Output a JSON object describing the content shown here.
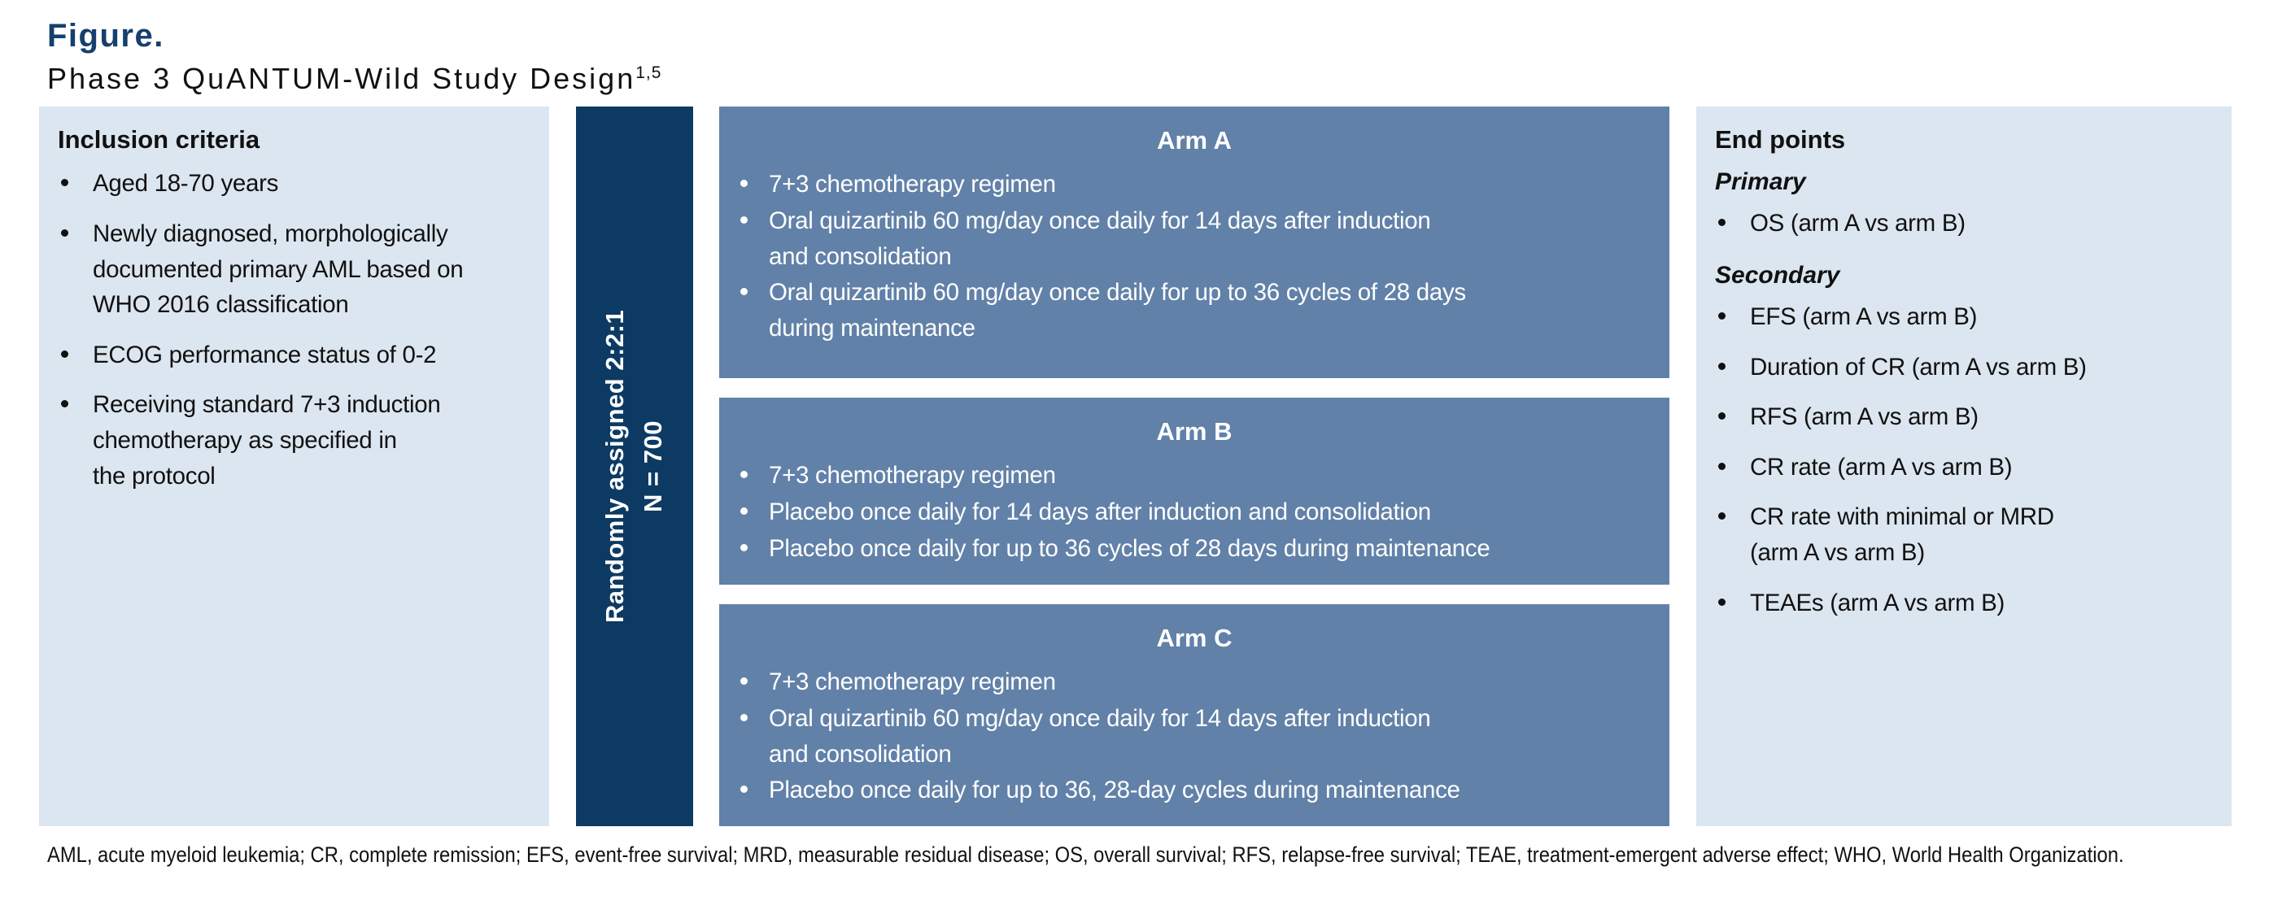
{
  "figure": {
    "label": "Figure.",
    "title": "Phase 3 QuANTUM-Wild Study Design",
    "title_superscript": "1,5"
  },
  "colors": {
    "navy": "#0c3a63",
    "arm_blue": "#6181a8",
    "light_blue": "#dce6f0",
    "label_navy": "#15406e"
  },
  "inclusion": {
    "heading": "Inclusion criteria",
    "items": [
      "Aged 18-70 years",
      "Newly diagnosed, morphologically\ndocumented primary AML based on\nWHO 2016 classification",
      "ECOG performance status of 0-2",
      "Receiving standard 7+3 induction\nchemotherapy as specified in\nthe protocol"
    ]
  },
  "randomization": {
    "line1": "Randomly assigned 2:2:1",
    "line2": "N = 700"
  },
  "arms": [
    {
      "title": "Arm A",
      "items": [
        "7+3 chemotherapy regimen",
        "Oral quizartinib 60 mg/day once daily for 14 days after induction\nand consolidation",
        "Oral quizartinib 60 mg/day once daily for up to 36 cycles of 28 days\nduring maintenance"
      ]
    },
    {
      "title": "Arm B",
      "items": [
        "7+3 chemotherapy regimen",
        "Placebo once daily for 14 days after induction and consolidation",
        "Placebo once daily for up to 36 cycles of 28 days during maintenance"
      ]
    },
    {
      "title": "Arm C",
      "items": [
        "7+3 chemotherapy regimen",
        "Oral quizartinib 60 mg/day once daily for 14 days after induction\nand consolidation",
        "Placebo once daily for up to 36, 28-day cycles during maintenance"
      ]
    }
  ],
  "endpoints": {
    "heading": "End points",
    "primary_label": "Primary",
    "primary_items": [
      "OS (arm A vs arm B)"
    ],
    "secondary_label": "Secondary",
    "secondary_items": [
      "EFS (arm A vs arm B)",
      "Duration of CR (arm A vs arm B)",
      "RFS (arm A vs arm B)",
      "CR rate (arm A vs arm B)",
      "CR rate with minimal or MRD\n(arm A vs arm B)",
      "TEAEs (arm A vs arm B)"
    ]
  },
  "footnote": "AML, acute myeloid leukemia; CR, complete remission; EFS, event-free survival; MRD, measurable residual disease; OS, overall survival; RFS, relapse-free survival; TEAE, treatment-emergent adverse effect; WHO, World Health Organization."
}
